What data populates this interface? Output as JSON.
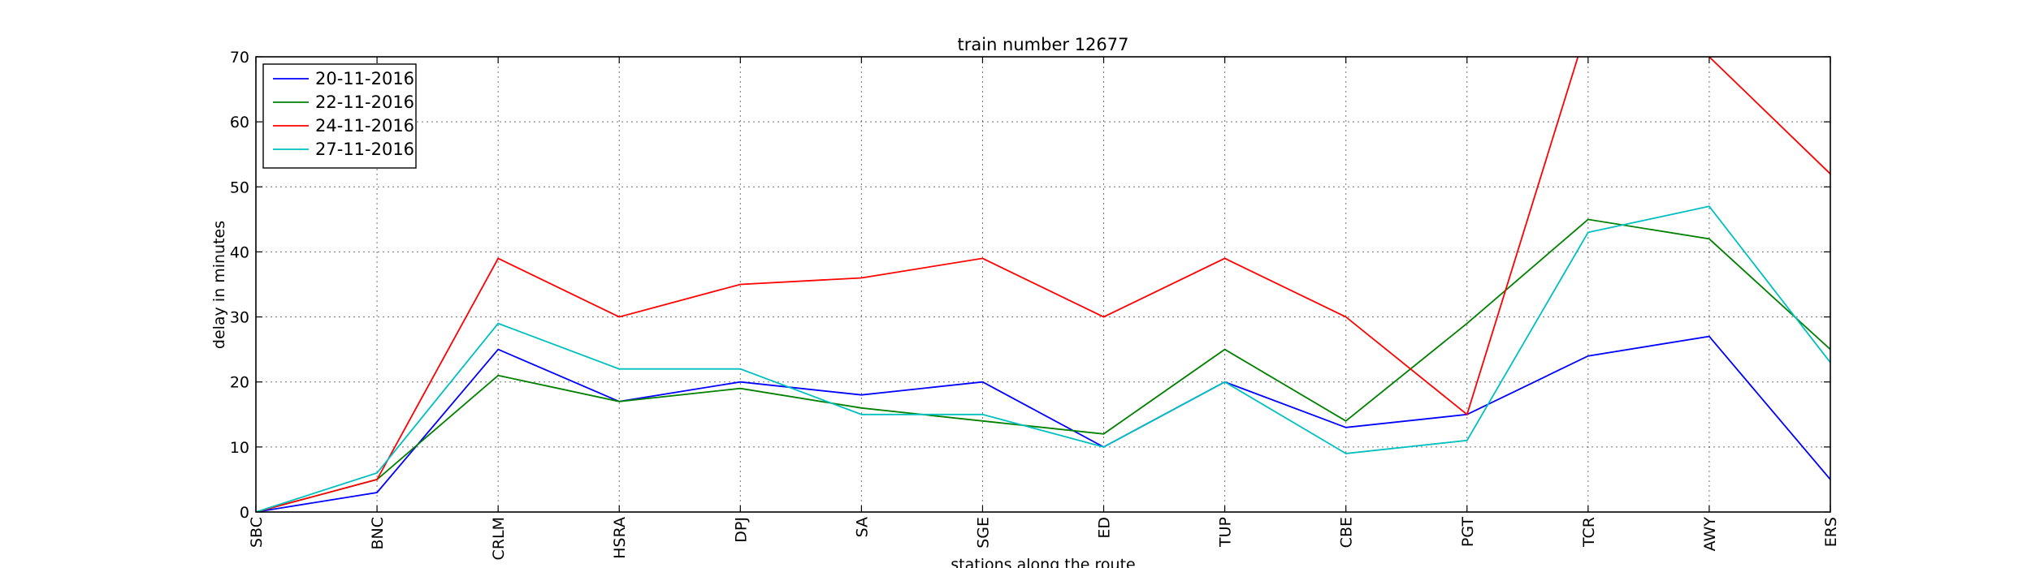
{
  "chart_data": {
    "type": "line",
    "title": "train number 12677",
    "xlabel": "stations along the route",
    "ylabel": "delay in minutes",
    "ylim": [
      0,
      70
    ],
    "yticks": [
      0,
      10,
      20,
      30,
      40,
      50,
      60,
      70
    ],
    "grid": true,
    "legend_position": "top-left",
    "categories": [
      "SBC",
      "BNC",
      "CRLM",
      "HSRA",
      "DPJ",
      "SA",
      "SGE",
      "ED",
      "TUP",
      "CBE",
      "PGT",
      "TCR",
      "AWY",
      "ERS"
    ],
    "series": [
      {
        "name": "20-11-2016",
        "color": "#0000ff",
        "values": [
          0,
          3,
          25,
          17,
          20,
          18,
          20,
          10,
          20,
          13,
          15,
          24,
          27,
          5
        ]
      },
      {
        "name": "22-11-2016",
        "color": "#008000",
        "values": [
          0,
          5,
          21,
          17,
          19,
          16,
          14,
          12,
          25,
          14,
          29,
          45,
          42,
          25
        ]
      },
      {
        "name": "24-11-2016",
        "color": "#ff0000",
        "values": [
          0,
          5,
          39,
          30,
          35,
          36,
          39,
          30,
          39,
          30,
          15,
          75,
          70,
          52
        ]
      },
      {
        "name": "27-11-2016",
        "color": "#00bfbf",
        "values": [
          0,
          6,
          29,
          22,
          22,
          15,
          15,
          10,
          20,
          9,
          11,
          43,
          47,
          23
        ]
      }
    ]
  }
}
